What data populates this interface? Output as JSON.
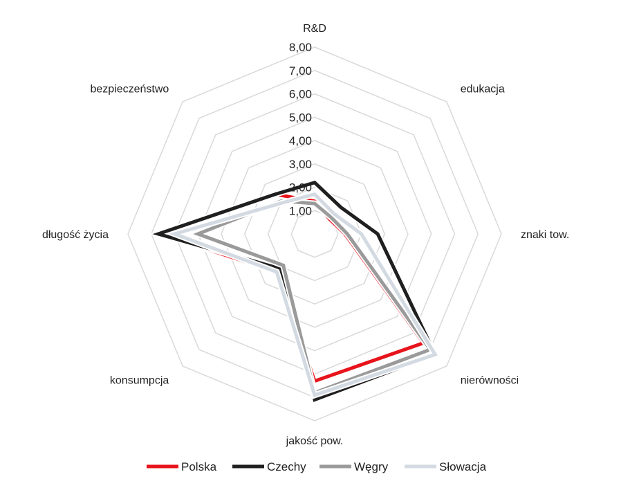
{
  "chart_data": {
    "type": "radar",
    "axes": [
      "R&D",
      "edukacja",
      "znaki tow.",
      "nierówności",
      "jakość pow.",
      "konsumpcja",
      "długość życia",
      "bezpieczeństwo"
    ],
    "r_ticks": [
      "1,00",
      "2,00",
      "3,00",
      "4,00",
      "5,00",
      "6,00",
      "7,00",
      "8,00"
    ],
    "rlim": [
      0,
      8
    ],
    "grid": true,
    "legend_position": "bottom",
    "series": [
      {
        "name": "Polska",
        "color": "#e8141b",
        "values": [
          1.4,
          0.9,
          1.3,
          6.6,
          6.3,
          2.3,
          6.6,
          2.4
        ]
      },
      {
        "name": "Czechy",
        "color": "#1f1f1f",
        "values": [
          2.2,
          1.6,
          2.7,
          7.3,
          7.1,
          2.1,
          6.7,
          2.4
        ]
      },
      {
        "name": "Węgry",
        "color": "#9a9a9a",
        "values": [
          1.3,
          1.0,
          1.4,
          7.0,
          6.8,
          1.9,
          5.0,
          2.0
        ]
      },
      {
        "name": "Słowacja",
        "color": "#d3dae2",
        "values": [
          1.7,
          1.2,
          2.0,
          7.3,
          6.9,
          2.3,
          6.0,
          1.9
        ]
      }
    ]
  }
}
